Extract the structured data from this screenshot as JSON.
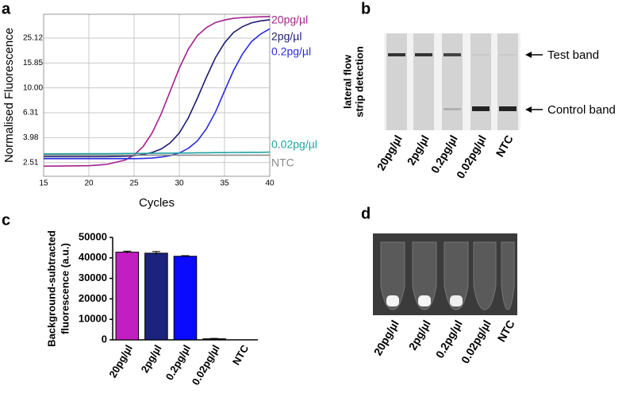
{
  "chart_data": [
    {
      "type": "line",
      "panel": "a",
      "xlabel": "Cycles",
      "ylabel": "Normalised Fluorescence",
      "x": [
        15,
        20,
        22,
        24,
        25,
        26,
        27,
        28,
        29,
        30,
        31,
        32,
        33,
        34,
        35,
        36,
        37,
        38,
        39,
        40
      ],
      "series": [
        {
          "name": "20pg/µl",
          "color": "#a3218f",
          "values": [
            2.35,
            2.37,
            2.43,
            2.63,
            2.89,
            3.38,
            4.35,
            6.19,
            9.45,
            14.4,
            20.5,
            26.3,
            30.5,
            33.5,
            35.1,
            36.2,
            36.7,
            37.0,
            37.2,
            37.4
          ]
        },
        {
          "name": "2pg/µl",
          "color": "#1c1c70",
          "values": [
            2.8,
            2.8,
            2.8,
            2.82,
            2.86,
            2.92,
            3.03,
            3.23,
            3.62,
            4.34,
            5.74,
            8.27,
            12.2,
            17.5,
            23.0,
            27.9,
            31.1,
            33.3,
            34.5,
            35.2
          ]
        },
        {
          "name": "0.2pg/µl",
          "color": "#2b2be0",
          "values": [
            2.7,
            2.7,
            2.7,
            2.7,
            2.7,
            2.71,
            2.73,
            2.78,
            2.86,
            3.0,
            3.27,
            3.75,
            4.7,
            6.4,
            9.44,
            13.8,
            18.8,
            23.6,
            27.1,
            29.8
          ]
        },
        {
          "name": "0.02pg/µl",
          "color": "#1fa3a3",
          "values": [
            2.95,
            2.96,
            2.96,
            2.97,
            2.97,
            2.98,
            2.98,
            2.99,
            2.99,
            3.0,
            3.0,
            3.01,
            3.01,
            3.02,
            3.02,
            3.03,
            3.03,
            3.04,
            3.04,
            3.05
          ]
        },
        {
          "name": "NTC",
          "color": "#8a8a8a",
          "values": [
            2.88,
            2.88,
            2.88,
            2.88,
            2.88,
            2.88,
            2.88,
            2.88,
            2.88,
            2.88,
            2.88,
            2.88,
            2.88,
            2.88,
            2.88,
            2.88,
            2.88,
            2.88,
            2.88,
            2.88
          ]
        }
      ],
      "xlim": [
        15,
        40
      ],
      "xticks": [
        15,
        20,
        25,
        30,
        35,
        40
      ],
      "ylim": [
        1.95,
        39
      ],
      "log_y": true,
      "yticks": [
        2.51,
        3.98,
        6.31,
        {
          "value": 10,
          "label": "10.00"
        },
        15.85,
        25.12
      ],
      "grid": true
    },
    {
      "type": "bar",
      "panel": "c",
      "ylabel": [
        "Background-subtracted",
        "fluorescence (a.u.)"
      ],
      "categories": [
        "20pg/µl",
        "2pg/µl",
        "0.2pg/µl",
        "0.02pg/µl",
        "NTC"
      ],
      "values": [
        42800,
        42300,
        40800,
        500,
        0
      ],
      "errors": [
        500,
        800,
        300,
        200,
        0
      ],
      "colors": [
        "#c21fc2",
        "#1b237e",
        "#0a0aff",
        "#000000",
        "#000000"
      ],
      "ylim": [
        0,
        50000
      ],
      "yticks": [
        0,
        10000,
        20000,
        30000,
        40000,
        50000
      ]
    }
  ],
  "panel_b": {
    "letter": "b",
    "ylabel": [
      "lateral flow",
      "strip detection"
    ],
    "lanes": [
      "20pg/µl",
      "2pg/µl",
      "0.2pg/µl",
      "0.02pg/µl",
      "NTC"
    ],
    "test_band": "Test band",
    "control_band": "Control band"
  },
  "panel_d": {
    "letter": "d",
    "lanes": [
      "20pg/µl",
      "2pg/µl",
      "0.2pg/µl",
      "0.02pg/µl",
      "NTC"
    ]
  }
}
